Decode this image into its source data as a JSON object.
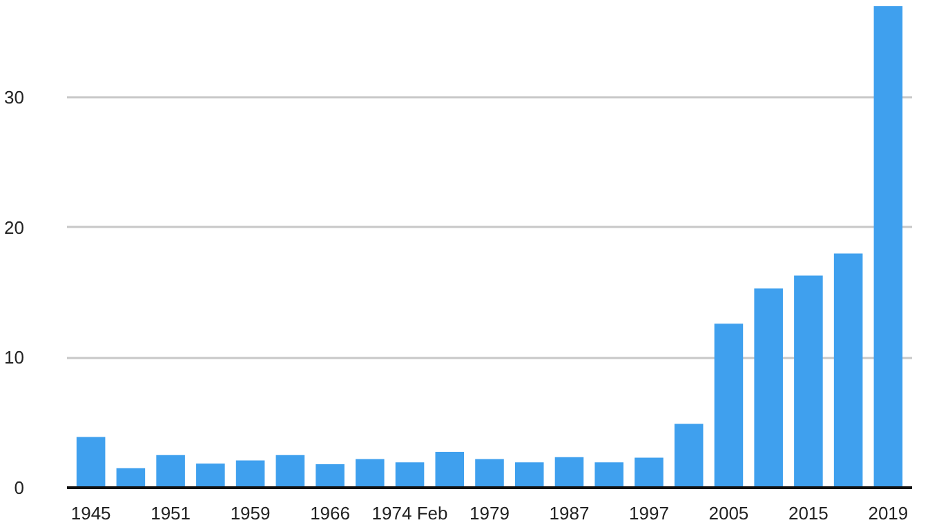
{
  "chart_data": {
    "type": "bar",
    "categories": [
      "1945",
      null,
      "1951",
      null,
      "1959",
      null,
      "1966",
      null,
      "1974 Feb",
      null,
      "1979",
      null,
      "1987",
      null,
      "1997",
      null,
      "2005",
      null,
      "2015",
      null,
      "2019"
    ],
    "values": [
      3.9,
      1.5,
      2.5,
      1.85,
      2.1,
      2.5,
      1.8,
      2.2,
      1.95,
      2.75,
      2.2,
      1.95,
      2.35,
      1.95,
      2.3,
      4.9,
      12.6,
      15.3,
      16.3,
      18.0,
      37
    ],
    "color": "#3fa0ee",
    "ylim": [
      0,
      37
    ],
    "yticks": [
      0,
      10,
      20,
      30
    ],
    "grid": "y"
  }
}
